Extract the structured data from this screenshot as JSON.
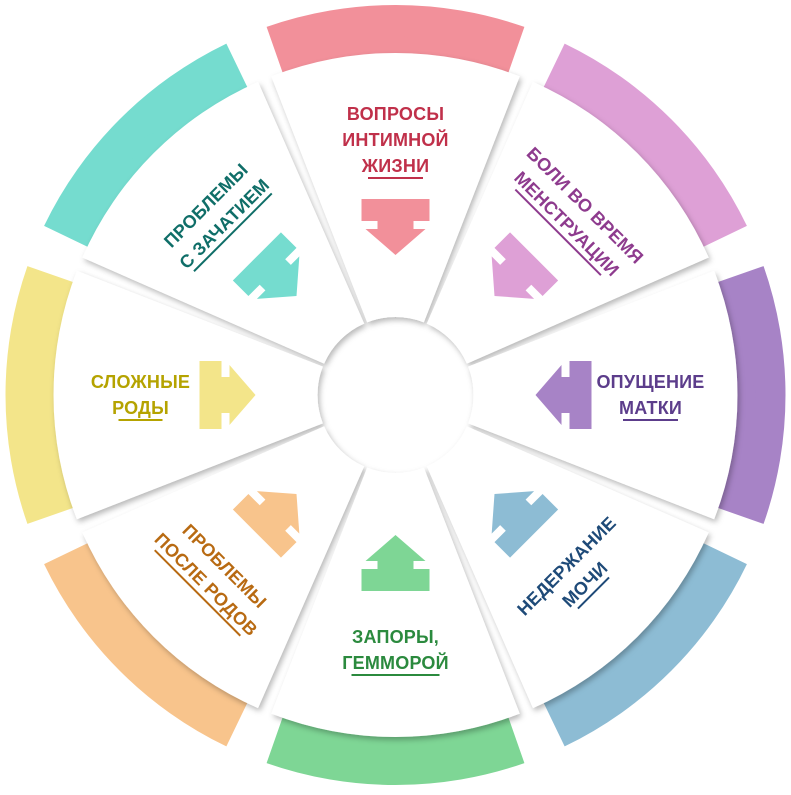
{
  "center_text": "",
  "segments": [
    {
      "id": "intimate",
      "lines": [
        "ВОПРОСЫ",
        "ИНТИМНОЙ",
        "ЖИЗНИ"
      ],
      "color": "#f2909a",
      "text_color": "#c0304a"
    },
    {
      "id": "menstruation",
      "lines": [
        "БОЛИ ВО ВРЕМЯ",
        "МЕНСТРУАЦИИ"
      ],
      "color": "#dea0d6",
      "text_color": "#8e3b8e"
    },
    {
      "id": "prolapse",
      "lines": [
        "ОПУЩЕНИЕ",
        "МАТКИ"
      ],
      "color": "#a783c6",
      "text_color": "#5c3d8b"
    },
    {
      "id": "incontinence",
      "lines": [
        "НЕДЕРЖАНИЕ",
        "МОЧИ"
      ],
      "color": "#8dbcd4",
      "text_color": "#1e4a78"
    },
    {
      "id": "constipation",
      "lines": [
        "ЗАПОРЫ,",
        "ГЕММОРОЙ"
      ],
      "color": "#7ed695",
      "text_color": "#2b8a3e"
    },
    {
      "id": "postpartum",
      "lines": [
        "ПРОБЛЕМЫ",
        "ПОСЛЕ РОДОВ"
      ],
      "color": "#f8c48c",
      "text_color": "#b86a12"
    },
    {
      "id": "difficult-birth",
      "lines": [
        "СЛОЖНЫЕ",
        "РОДЫ"
      ],
      "color": "#f3e58a",
      "text_color": "#b5a300"
    },
    {
      "id": "conception",
      "lines": [
        "ПРОБЛЕМЫ",
        "С ЗАЧАТИЕМ"
      ],
      "color": "#75dccf",
      "text_color": "#0f6e68"
    }
  ]
}
